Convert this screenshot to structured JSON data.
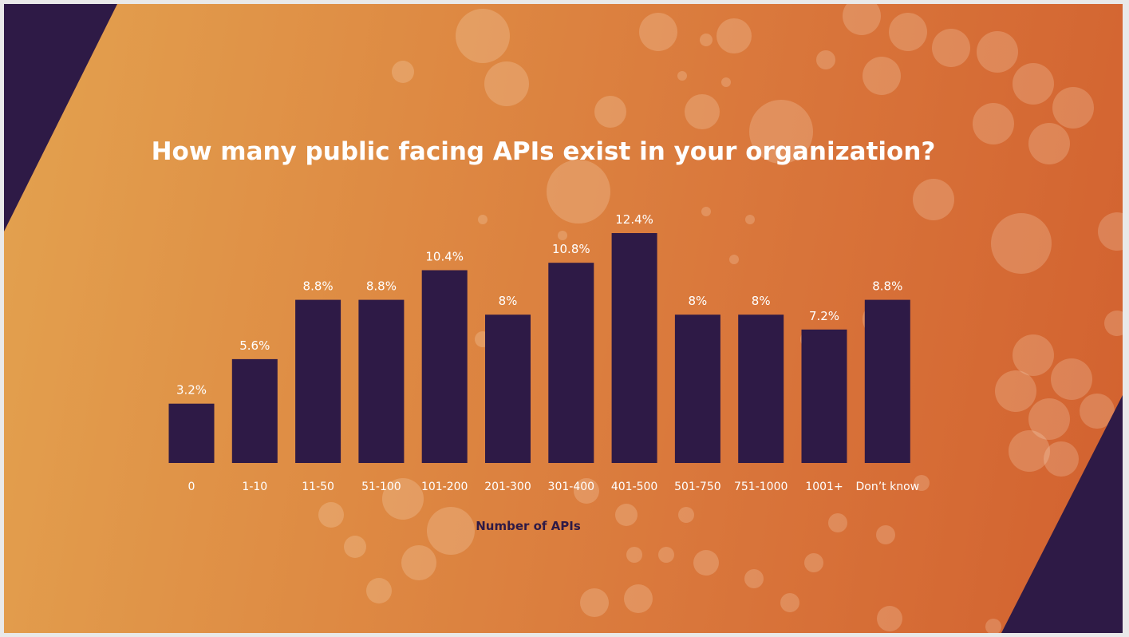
{
  "colors": {
    "bar": "#2e1a46",
    "corner": "#2e1a46",
    "background_start": "#e3a24f",
    "background_end": "#d2612f",
    "text": "#ffffff"
  },
  "chart_data": {
    "type": "bar",
    "title": "How many public facing APIs exist in your organization?",
    "xlabel": "Number of APIs",
    "ylabel": "",
    "categories": [
      "0",
      "1-10",
      "11-50",
      "51-100",
      "101-200",
      "201-300",
      "301-400",
      "401-500",
      "501-750",
      "751-1000",
      "1001+",
      "Don’t know"
    ],
    "values": [
      3.2,
      5.6,
      8.8,
      8.8,
      10.4,
      8,
      10.8,
      12.4,
      8,
      8,
      7.2,
      8.8
    ],
    "value_labels": [
      "3.2%",
      "5.6%",
      "8.8%",
      "8.8%",
      "10.4%",
      "8%",
      "10.8%",
      "12.4%",
      "8%",
      "8%",
      "7.2%",
      "8.8%"
    ],
    "ylim": [
      0,
      12.4
    ],
    "grid": false,
    "legend": "none"
  }
}
